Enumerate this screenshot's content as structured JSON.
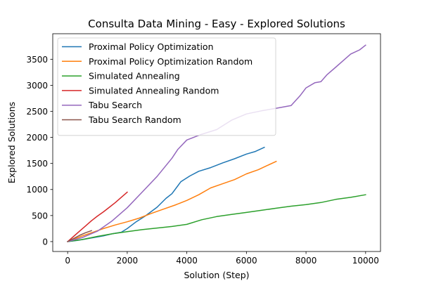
{
  "chart_data": {
    "type": "line",
    "title": "Consulta Data Mining - Easy - Explored Solutions",
    "xlabel": "Solution (Step)",
    "ylabel": "Explored Solutions",
    "xlim": [
      -500,
      10500
    ],
    "ylim": [
      -190,
      3990
    ],
    "xticks": [
      0,
      2000,
      4000,
      6000,
      8000,
      10000
    ],
    "yticks": [
      0,
      500,
      1000,
      1500,
      2000,
      2500,
      3000,
      3500
    ],
    "grid": false,
    "legend_position": "upper-left",
    "series": [
      {
        "name": "Proximal Policy Optimization",
        "color": "#1f77b4",
        "x": [
          0,
          300,
          600,
          900,
          1200,
          1500,
          1800,
          2000,
          2300,
          2600,
          3000,
          3300,
          3500,
          3800,
          4100,
          4400,
          4800,
          5200,
          5600,
          6000,
          6300,
          6600
        ],
        "y": [
          0,
          20,
          50,
          80,
          110,
          150,
          180,
          250,
          380,
          490,
          660,
          830,
          920,
          1150,
          1260,
          1350,
          1420,
          1510,
          1590,
          1680,
          1730,
          1810
        ]
      },
      {
        "name": "Proximal Policy Optimization Random",
        "color": "#ff7f0e",
        "x": [
          0,
          400,
          800,
          1200,
          1600,
          2000,
          2400,
          2800,
          3200,
          3600,
          4000,
          4400,
          4800,
          5200,
          5600,
          6000,
          6400,
          6700,
          7000
        ],
        "y": [
          0,
          90,
          170,
          250,
          320,
          380,
          450,
          540,
          620,
          700,
          790,
          900,
          1030,
          1110,
          1190,
          1300,
          1380,
          1460,
          1540
        ]
      },
      {
        "name": "Simulated Annealing",
        "color": "#2ca02c",
        "x": [
          0,
          500,
          1000,
          1500,
          2000,
          2500,
          3000,
          3500,
          4000,
          4500,
          5000,
          5500,
          6000,
          6500,
          7000,
          7500,
          8000,
          8500,
          9000,
          9500,
          10000
        ],
        "y": [
          0,
          40,
          100,
          150,
          190,
          230,
          260,
          290,
          330,
          420,
          480,
          520,
          560,
          600,
          640,
          680,
          710,
          750,
          810,
          850,
          900
        ]
      },
      {
        "name": "Simulated Annealing Random",
        "color": "#d62728",
        "x": [
          0,
          200,
          400,
          600,
          800,
          1000,
          1200,
          1400,
          1600,
          1800,
          2000
        ],
        "y": [
          0,
          100,
          200,
          300,
          400,
          490,
          570,
          660,
          750,
          850,
          950
        ]
      },
      {
        "name": "Tabu Search",
        "color": "#9467bd",
        "x": [
          0,
          500,
          1000,
          1500,
          2000,
          2500,
          3000,
          3500,
          3700,
          4000,
          4500,
          5000,
          5500,
          6000,
          6500,
          7000,
          7500,
          7800,
          8000,
          8300,
          8500,
          8700,
          9000,
          9300,
          9500,
          9800,
          10000
        ],
        "y": [
          0,
          80,
          200,
          400,
          650,
          950,
          1250,
          1600,
          1770,
          1950,
          2060,
          2150,
          2330,
          2450,
          2510,
          2560,
          2610,
          2800,
          2950,
          3050,
          3070,
          3200,
          3350,
          3500,
          3600,
          3680,
          3770
        ]
      },
      {
        "name": "Tabu Search Random",
        "color": "#8c564b",
        "x": [
          0,
          200,
          400,
          600,
          800
        ],
        "y": [
          0,
          60,
          120,
          170,
          210
        ]
      }
    ]
  }
}
